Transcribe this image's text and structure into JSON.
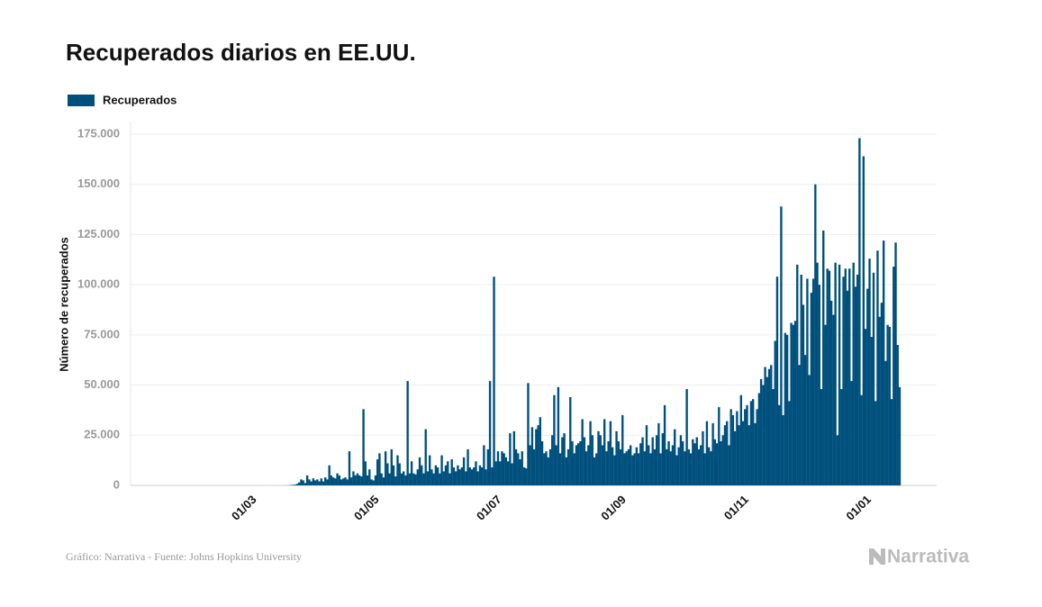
{
  "chart_data": {
    "type": "bar",
    "title": "Recuperados diarios en EE.UU.",
    "y_label": "Número de recuperados",
    "source": "Gráfico: Narrativa - Fuente: Johns Hopkins University",
    "brand": "Narrativa",
    "categories": [
      null,
      null,
      null,
      null,
      null,
      null,
      null,
      null,
      null,
      null,
      null,
      null,
      null,
      null,
      null,
      null,
      null,
      null,
      null,
      null,
      null,
      null,
      null,
      null,
      null,
      null,
      null,
      null,
      null,
      null,
      null,
      null,
      null,
      null,
      null,
      null,
      null,
      null,
      null,
      "01/03",
      null,
      null,
      null,
      null,
      null,
      null,
      null,
      null,
      null,
      null,
      null,
      null,
      null,
      null,
      null,
      null,
      null,
      null,
      null,
      null,
      null,
      null,
      null,
      null,
      null,
      null,
      null,
      null,
      null,
      null,
      null,
      null,
      null,
      null,
      null,
      null,
      null,
      null,
      null,
      null,
      null,
      null,
      null,
      null,
      null,
      null,
      null,
      null,
      null,
      null,
      null,
      null,
      null,
      null,
      null,
      null,
      null,
      null,
      null,
      null,
      "01/05",
      null,
      null,
      null,
      null,
      null,
      null,
      null,
      null,
      null,
      null,
      null,
      null,
      null,
      null,
      null,
      null,
      null,
      null,
      null,
      null,
      null,
      null,
      null,
      null,
      null,
      null,
      null,
      null,
      null,
      null,
      null,
      null,
      null,
      null,
      null,
      null,
      null,
      null,
      null,
      null,
      null,
      null,
      null,
      null,
      null,
      null,
      null,
      null,
      null,
      null,
      null,
      null,
      null,
      null,
      null,
      null,
      null,
      null,
      null,
      null,
      "01/07",
      null,
      null,
      null,
      null,
      null,
      null,
      null,
      null,
      null,
      null,
      null,
      null,
      null,
      null,
      null,
      null,
      null,
      null,
      null,
      null,
      null,
      null,
      null,
      null,
      null,
      null,
      null,
      null,
      null,
      null,
      null,
      null,
      null,
      null,
      null,
      null,
      null,
      null,
      null,
      null,
      null,
      null,
      null,
      null,
      null,
      null,
      null,
      null,
      null,
      null,
      null,
      null,
      null,
      null,
      null,
      null,
      null,
      null,
      null,
      null,
      null,
      "01/09",
      null,
      null,
      null,
      null,
      null,
      null,
      null,
      null,
      null,
      null,
      null,
      null,
      null,
      null,
      null,
      null,
      null,
      null,
      null,
      null,
      null,
      null,
      null,
      null,
      null,
      null,
      null,
      null,
      null,
      null,
      null,
      null,
      null,
      null,
      null,
      null,
      null,
      null,
      null,
      null,
      null,
      null,
      null,
      null,
      null,
      null,
      null,
      null,
      null,
      null,
      null,
      null,
      null,
      null,
      null,
      null,
      null,
      null,
      null,
      null,
      "01/11",
      null,
      null,
      null,
      null,
      null,
      null,
      null,
      null,
      null,
      null,
      null,
      null,
      null,
      null,
      null,
      null,
      null,
      null,
      null,
      null,
      null,
      null,
      null,
      null,
      null,
      null,
      null,
      null,
      null,
      null,
      null,
      null,
      null,
      null,
      null,
      null,
      null,
      null,
      null,
      null,
      null,
      null,
      null,
      null,
      null,
      null,
      null,
      null,
      null,
      null,
      null,
      null,
      null,
      null,
      null,
      null,
      null,
      null,
      null,
      null,
      "01/01",
      null,
      null,
      null,
      null,
      null,
      null,
      null,
      null,
      null,
      null,
      null,
      null,
      null,
      null,
      null
    ],
    "series": [
      {
        "name": "Recuperados",
        "color": "#00507d",
        "values": [
          0,
          0,
          0,
          0,
          0,
          0,
          0,
          0,
          0,
          0,
          0,
          1,
          0,
          0,
          2,
          0,
          0,
          1,
          0,
          0,
          0,
          0,
          0,
          0,
          0,
          3,
          0,
          0,
          0,
          0,
          0,
          0,
          0,
          0,
          0,
          0,
          2,
          0,
          0,
          0,
          0,
          0,
          0,
          1,
          3,
          0,
          2,
          5,
          0,
          1,
          0,
          2,
          0,
          10,
          0,
          30,
          100,
          200,
          300,
          400,
          800,
          1500,
          3000,
          2500,
          1200,
          5000,
          3000,
          2000,
          3500,
          2500,
          3000,
          2000,
          3500,
          2000,
          4000,
          3000,
          10000,
          5000,
          4000,
          3500,
          6000,
          5000,
          3000,
          3500,
          4000,
          3000,
          17000,
          4000,
          7000,
          5000,
          6000,
          5000,
          4500,
          38000,
          12000,
          5000,
          8000,
          3000,
          2500,
          5000,
          13000,
          16000,
          6000,
          4000,
          17000,
          11000,
          6000,
          18000,
          10000,
          4500,
          15000,
          11000,
          6000,
          7000,
          5000,
          52000,
          6000,
          12000,
          6000,
          5500,
          8000,
          14000,
          10000,
          6000,
          28000,
          7000,
          15000,
          8000,
          6000,
          10000,
          9000,
          6000,
          15000,
          7000,
          10000,
          12000,
          6000,
          13000,
          9000,
          7000,
          10000,
          8000,
          9000,
          14000,
          7000,
          18000,
          9000,
          8000,
          9000,
          12000,
          7000,
          10000,
          9000,
          20000,
          8000,
          18000,
          52000,
          9000,
          104000,
          12000,
          17000,
          12000,
          17000,
          16000,
          14000,
          12000,
          26000,
          11000,
          27000,
          18000,
          16000,
          13000,
          17000,
          9000,
          8500,
          51000,
          20000,
          29000,
          18000,
          28000,
          30000,
          34000,
          22000,
          16000,
          17000,
          14000,
          18000,
          25000,
          45000,
          20000,
          49000,
          16000,
          24000,
          26000,
          14000,
          18000,
          44000,
          22000,
          16000,
          20000,
          21000,
          22000,
          33000,
          24000,
          17000,
          20000,
          32000,
          25000,
          14000,
          16000,
          27000,
          25000,
          20000,
          33000,
          17000,
          22000,
          32000,
          19000,
          15000,
          27000,
          22000,
          18000,
          35000,
          16000,
          17000,
          18000,
          20000,
          15000,
          16000,
          19000,
          16000,
          21000,
          24000,
          17000,
          30000,
          20000,
          16000,
          24000,
          18000,
          25000,
          31000,
          16000,
          26000,
          40000,
          18000,
          22000,
          17000,
          20000,
          28000,
          15000,
          19000,
          25000,
          22000,
          17000,
          48000,
          18000,
          16000,
          23000,
          21000,
          24000,
          18000,
          20000,
          27000,
          16000,
          32000,
          19000,
          17000,
          31000,
          23000,
          21000,
          39000,
          22000,
          25000,
          30000,
          32000,
          20000,
          38000,
          35000,
          27000,
          37000,
          30000,
          45000,
          32000,
          38000,
          40000,
          30000,
          42000,
          43000,
          31000,
          38000,
          46000,
          53000,
          50000,
          59000,
          54000,
          58000,
          60000,
          48000,
          72000,
          104000,
          40000,
          139000,
          35000,
          76000,
          75000,
          42000,
          81000,
          80000,
          82000,
          110000,
          60000,
          105000,
          90000,
          65000,
          103000,
          55000,
          96000,
          103000,
          150000,
          111000,
          100000,
          48000,
          127000,
          80000,
          108000,
          107000,
          92000,
          85000,
          111000,
          25000,
          110000,
          48000,
          104000,
          108000,
          97000,
          108000,
          52000,
          111000,
          99000,
          105000,
          173000,
          45000,
          164000,
          78000,
          98000,
          113000,
          74000,
          106000,
          42000,
          117000,
          84000,
          91000,
          122000,
          62000,
          80000,
          79000,
          43000,
          109000,
          121000,
          70000,
          49000
        ]
      }
    ],
    "ylim": [
      0,
      175000
    ],
    "yticks": [
      0,
      {
        "value": 25000,
        "label": "25.000"
      },
      {
        "value": 50000,
        "label": "50.000"
      },
      {
        "value": 75000,
        "label": "75.000"
      },
      {
        "value": 100000,
        "label": "100.000"
      },
      {
        "value": 125000,
        "label": "125.000"
      },
      {
        "value": 150000,
        "label": "150.000"
      },
      {
        "value": 175000,
        "label": "175.000"
      }
    ],
    "grid": true,
    "legend": "top-left"
  }
}
